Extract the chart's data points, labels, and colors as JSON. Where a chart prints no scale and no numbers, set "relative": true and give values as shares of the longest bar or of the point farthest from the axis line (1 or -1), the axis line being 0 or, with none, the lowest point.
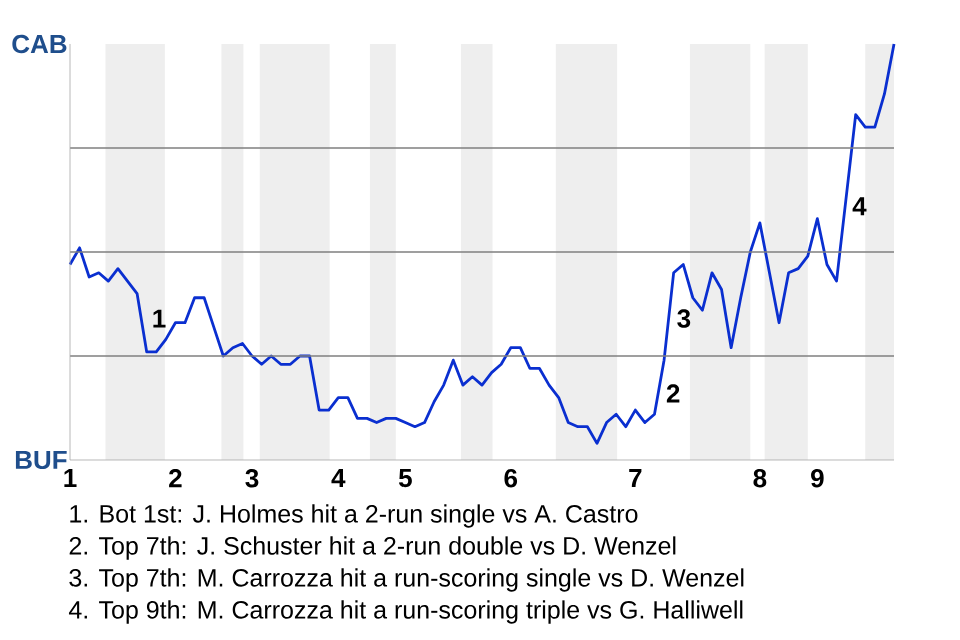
{
  "chart_data": {
    "type": "line",
    "relative": true,
    "categories": [
      "1",
      null,
      null,
      null,
      null,
      null,
      null,
      null,
      null,
      null,
      null,
      "2",
      null,
      null,
      null,
      null,
      null,
      null,
      null,
      "3",
      null,
      null,
      null,
      null,
      null,
      null,
      null,
      null,
      "4",
      null,
      null,
      null,
      null,
      null,
      null,
      "5",
      null,
      null,
      null,
      null,
      null,
      null,
      null,
      null,
      null,
      null,
      "6",
      null,
      null,
      null,
      null,
      null,
      null,
      null,
      null,
      null,
      null,
      null,
      null,
      "7",
      null,
      null,
      null,
      null,
      null,
      null,
      null,
      null,
      null,
      null,
      null,
      null,
      "8",
      null,
      null,
      null,
      null,
      null,
      "9",
      null,
      null,
      null,
      null,
      null,
      null,
      null,
      null
    ],
    "grid": "y",
    "series": [
      {
        "color": "#0a2fd0",
        "values": [
          0.47,
          0.51,
          0.44,
          0.45,
          0.43,
          0.46,
          0.43,
          0.4,
          0.26,
          0.26,
          0.29,
          0.33,
          0.33,
          0.39,
          0.39,
          0.32,
          0.25,
          0.27,
          0.28,
          0.25,
          0.23,
          0.25,
          0.23,
          0.23,
          0.25,
          0.25,
          0.12,
          0.12,
          0.15,
          0.15,
          0.1,
          0.1,
          0.09,
          0.1,
          0.1,
          0.09,
          0.08,
          0.09,
          0.14,
          0.18,
          0.24,
          0.18,
          0.2,
          0.18,
          0.21,
          0.23,
          0.27,
          0.27,
          0.22,
          0.22,
          0.18,
          0.15,
          0.09,
          0.08,
          0.08,
          0.04,
          0.09,
          0.11,
          0.08,
          0.12,
          0.09,
          0.11,
          0.24,
          0.45,
          0.47,
          0.39,
          0.36,
          0.45,
          0.41,
          0.27,
          0.39,
          0.5,
          0.57,
          0.45,
          0.33,
          0.45,
          0.46,
          0.49,
          0.58,
          0.47,
          0.43,
          0.63,
          0.83,
          0.8,
          0.8,
          0.88,
          1.0
        ]
      }
    ],
    "annotations": [
      "CAB",
      "BUF",
      "1",
      "2",
      "3",
      "4",
      "1. Bot 1st: J. Holmes hit a 2-run single vs A. Castro",
      "2. Top 7th: J. Schuster hit a 2-run double vs D. Wenzel",
      "3. Top 7th: M. Carrozza hit a run-scoring single vs D. Wenzel",
      "4. Top 9th: M. Carrozza hit a run-scoring triple vs G. Halliwell"
    ]
  }
}
